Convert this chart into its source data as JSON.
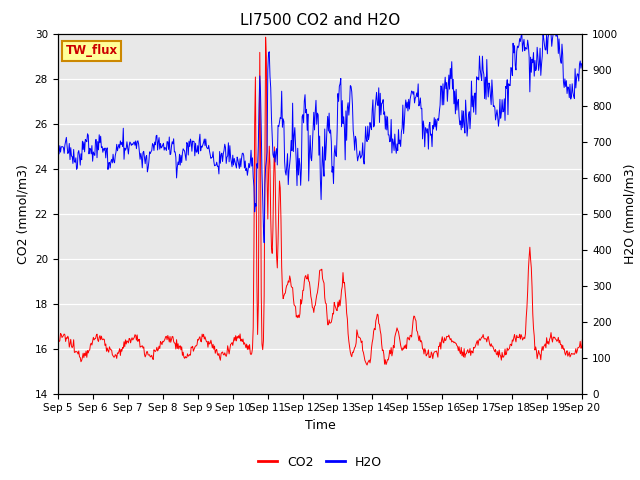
{
  "title": "LI7500 CO2 and H2O",
  "xlabel": "Time",
  "ylabel_left": "CO2 (mmol/m3)",
  "ylabel_right": "H2O (mmol/m3)",
  "ylim_left": [
    14,
    30
  ],
  "ylim_right": [
    0,
    1000
  ],
  "yticks_left": [
    14,
    16,
    18,
    20,
    22,
    24,
    26,
    28,
    30
  ],
  "yticks_right": [
    0,
    100,
    200,
    300,
    400,
    500,
    600,
    700,
    800,
    900,
    1000
  ],
  "xtick_labels": [
    "Sep 5",
    "Sep 6",
    "Sep 7",
    "Sep 8",
    "Sep 9",
    "Sep 10",
    "Sep 11",
    "Sep 12",
    "Sep 13",
    "Sep 14",
    "Sep 15",
    "Sep 16",
    "Sep 17",
    "Sep 18",
    "Sep 19",
    "Sep 20"
  ],
  "co2_color": "#FF0000",
  "h2o_color": "#0000FF",
  "background_color": "#E8E8E8",
  "legend_box_facecolor": "#FFFF99",
  "legend_box_edgecolor": "#CC8800",
  "legend_box_label": "TW_flux",
  "legend_box_textcolor": "#CC0000",
  "grid_color": "#FFFFFF",
  "title_fontsize": 11,
  "axis_label_fontsize": 9,
  "tick_fontsize": 7.5,
  "legend_fontsize": 9
}
